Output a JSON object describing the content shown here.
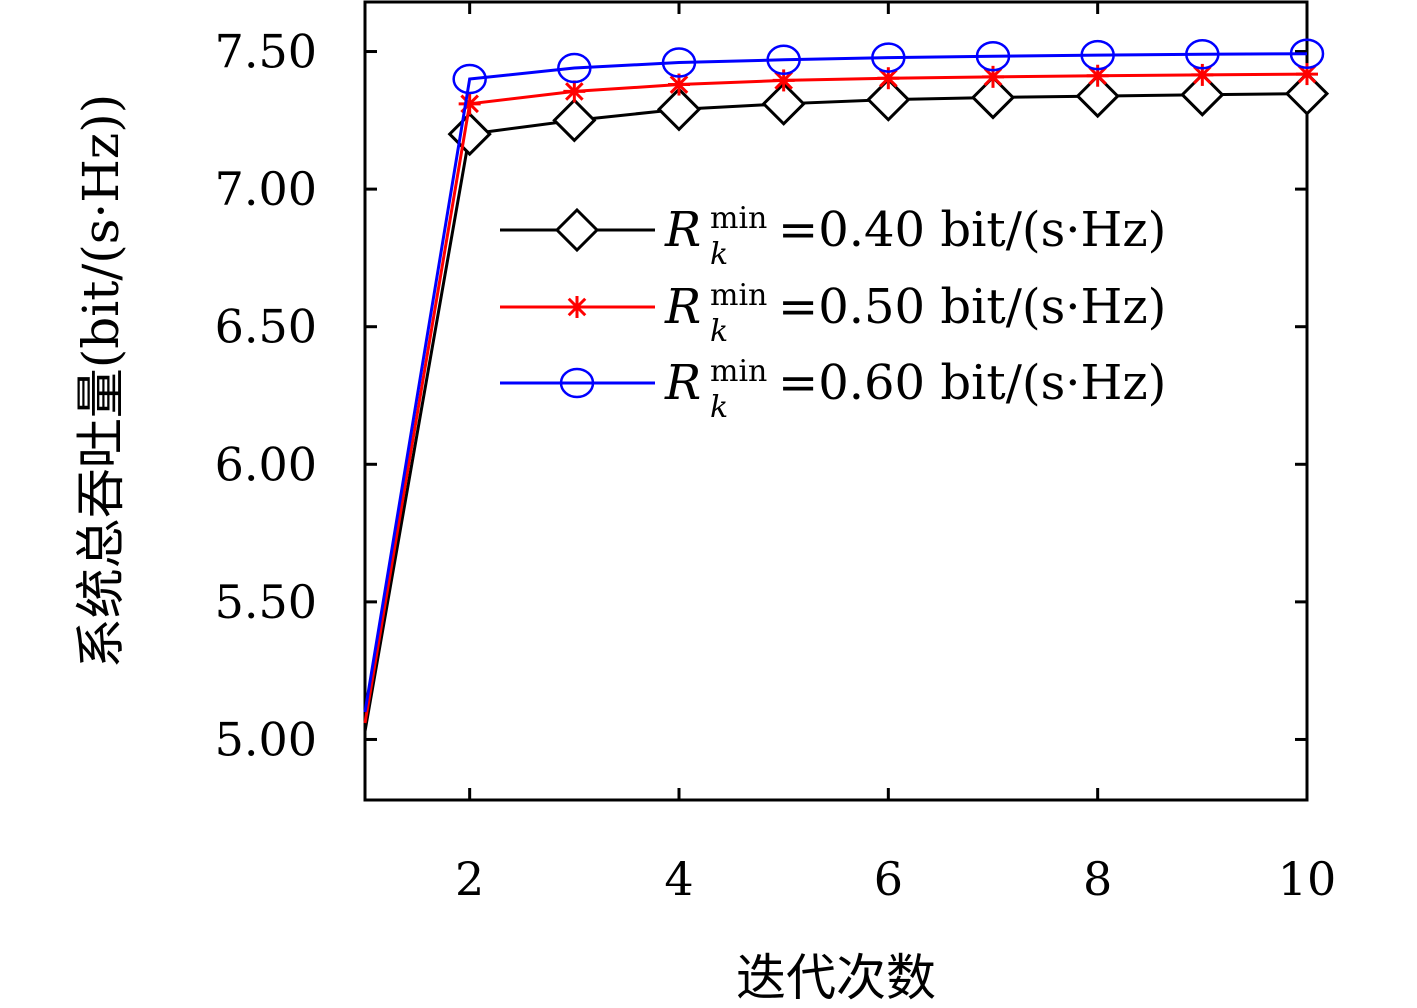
{
  "chart_data": {
    "type": "line",
    "xlabel": "迭代次数",
    "ylabel": "系统总吞吐量(bit/(s·Hz))",
    "xlim": [
      1,
      10
    ],
    "ylim": [
      4.78,
      7.68
    ],
    "xticks": [
      2,
      4,
      6,
      8,
      10
    ],
    "xtick_labels": [
      "2",
      "4",
      "6",
      "8",
      "10"
    ],
    "yticks": [
      5.0,
      5.5,
      6.0,
      6.5,
      7.0,
      7.5
    ],
    "ytick_labels": [
      "5.00",
      "5.50",
      "6.00",
      "6.50",
      "7.00",
      "7.50"
    ],
    "legend_position": "upper-right (inside plot)",
    "grid": false,
    "x": [
      1,
      2,
      3,
      4,
      5,
      6,
      7,
      8,
      9,
      10
    ],
    "series": [
      {
        "name": "R_k^min=0.40 bit/(s·Hz)",
        "legend_symbol": "R",
        "legend_sup": "min",
        "legend_sub": "k",
        "legend_rest": "=0.40 bit/(s·Hz)",
        "color": "#000000",
        "marker": "diamond",
        "values": [
          5.03,
          7.2,
          7.25,
          7.29,
          7.31,
          7.325,
          7.333,
          7.338,
          7.343,
          7.347
        ]
      },
      {
        "name": "R_k^min=0.50 bit/(s·Hz)",
        "legend_symbol": "R",
        "legend_sup": "min",
        "legend_sub": "k",
        "legend_rest": "=0.50 bit/(s·Hz)",
        "color": "#ff0000",
        "marker": "asterisk",
        "values": [
          5.06,
          7.31,
          7.355,
          7.38,
          7.395,
          7.403,
          7.408,
          7.412,
          7.415,
          7.418
        ]
      },
      {
        "name": "R_k^min=0.60 bit/(s·Hz)",
        "legend_symbol": "R",
        "legend_sup": "min",
        "legend_sub": "k",
        "legend_rest": "=0.60 bit/(s·Hz)",
        "color": "#0000ff",
        "marker": "circle",
        "values": [
          5.1,
          7.4,
          7.44,
          7.46,
          7.47,
          7.478,
          7.483,
          7.487,
          7.49,
          7.492
        ]
      }
    ]
  }
}
